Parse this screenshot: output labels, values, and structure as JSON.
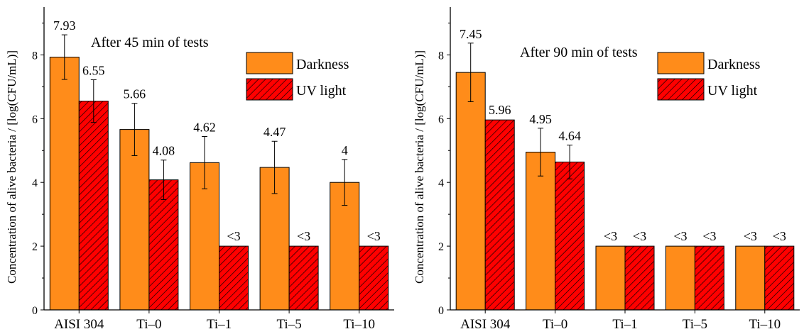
{
  "chart_data": [
    {
      "type": "bar",
      "ylabel": "Concentration of alive bacteria / [log(CFU/mL)]",
      "annotation": "After 45 min of tests",
      "categories": [
        "AISI 304",
        "Ti–0",
        "Ti–1",
        "Ti–5",
        "Ti–10"
      ],
      "ylim": [
        0,
        9.5
      ],
      "yticks": [
        "0",
        "2",
        "4",
        "6",
        "8"
      ],
      "legend_position": "top-right",
      "series": [
        {
          "name": "Darkness",
          "values": [
            7.93,
            5.66,
            4.62,
            4.47,
            4
          ],
          "errors": [
            0.7,
            0.82,
            0.82,
            0.82,
            0.72
          ],
          "labels": [
            "7.93",
            "5.66",
            "4.62",
            "4.47",
            "4"
          ],
          "color": "#ff8c1a",
          "pattern": "solid"
        },
        {
          "name": "UV light",
          "values": [
            6.55,
            4.08,
            2,
            2,
            2
          ],
          "errors": [
            0.67,
            0.62,
            null,
            null,
            null
          ],
          "labels": [
            "6.55",
            "4.08",
            "<3",
            "<3",
            "<3"
          ],
          "color": "#ff0000",
          "pattern": "hatched"
        }
      ]
    },
    {
      "type": "bar",
      "ylabel": "Concentration of alive bacteria / [log(CFU/mL)]",
      "annotation": "After 90 min of tests",
      "categories": [
        "AISI 304",
        "Ti–0",
        "Ti–1",
        "Ti–5",
        "Ti–10"
      ],
      "ylim": [
        0,
        9.5
      ],
      "yticks": [
        "0",
        "2",
        "4",
        "6",
        "8"
      ],
      "legend_position": "top-right",
      "series": [
        {
          "name": "Darkness",
          "values": [
            7.45,
            4.95,
            2,
            2,
            2
          ],
          "errors": [
            0.92,
            0.75,
            null,
            null,
            null
          ],
          "labels": [
            "7.45",
            "4.95",
            "<3",
            "<3",
            "<3"
          ],
          "color": "#ff8c1a",
          "pattern": "solid"
        },
        {
          "name": "UV light",
          "values": [
            5.96,
            4.64,
            2,
            2,
            2
          ],
          "errors": [
            null,
            0.53,
            null,
            null,
            null
          ],
          "labels": [
            "5.96",
            "4.64",
            "<3",
            "<3",
            "<3"
          ],
          "color": "#ff0000",
          "pattern": "hatched"
        }
      ]
    }
  ]
}
